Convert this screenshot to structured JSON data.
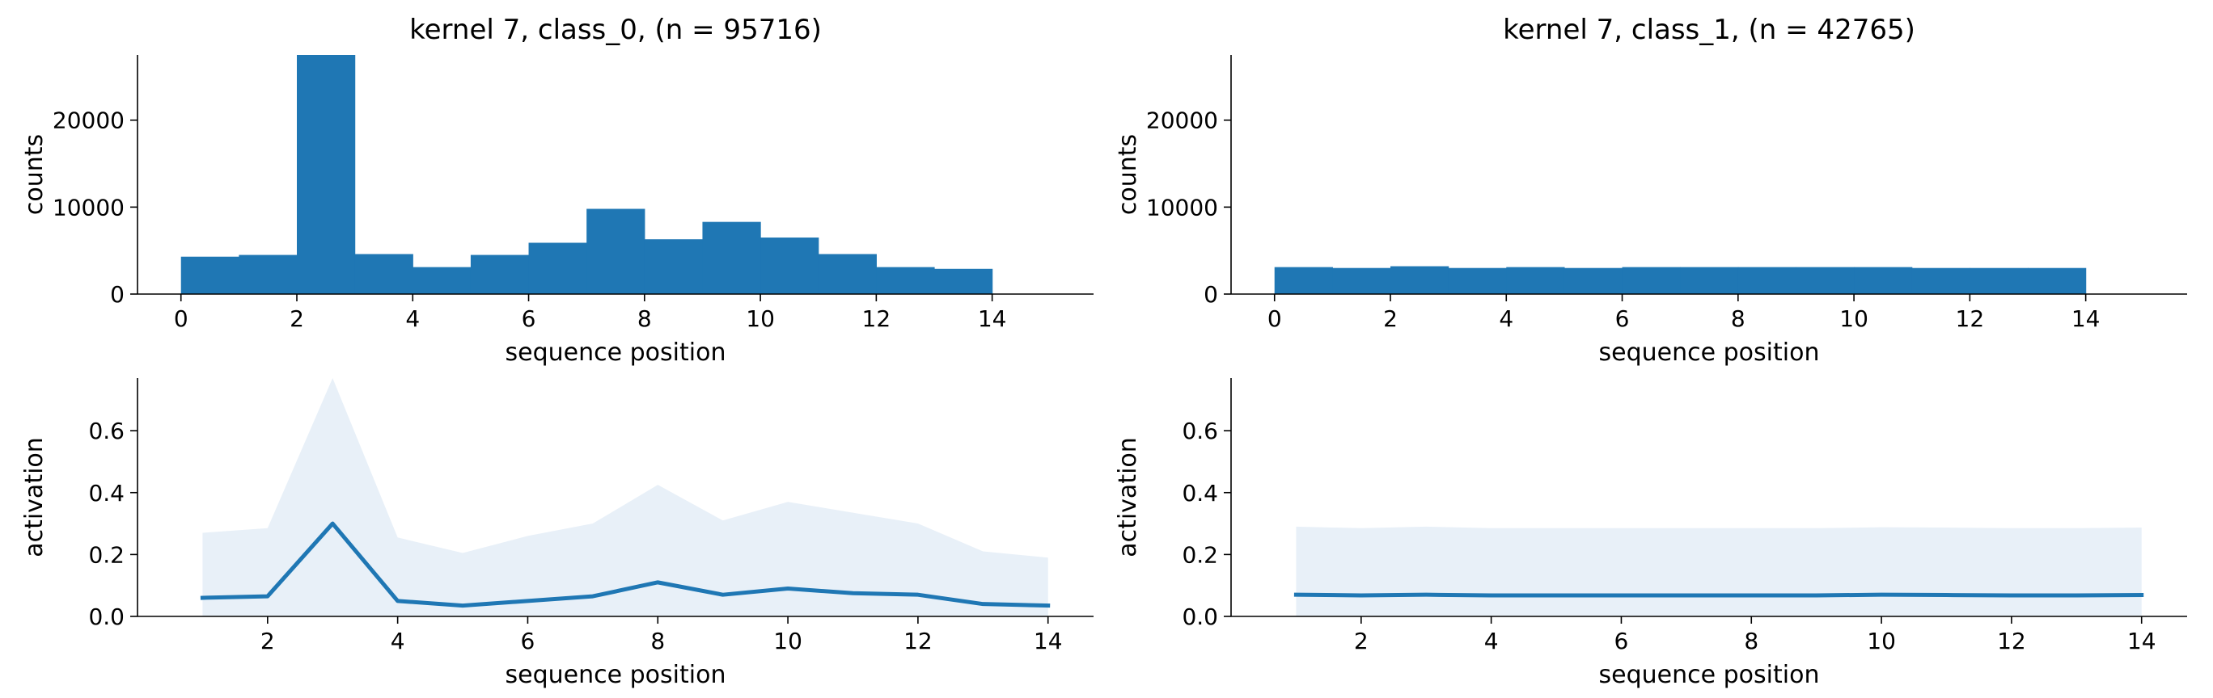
{
  "chart_data": [
    {
      "type": "bar",
      "title": "kernel 7, class_0, (n = 95716)",
      "xlabel": "sequence position",
      "ylabel": "counts",
      "xlim": [
        -0.75,
        15.75
      ],
      "ylim": [
        0,
        27500
      ],
      "xticks": [
        0,
        2,
        4,
        6,
        8,
        10,
        12,
        14
      ],
      "yticks": [
        0,
        10000,
        20000
      ],
      "bin_edges": [
        0,
        1,
        2,
        3,
        4,
        5,
        6,
        7,
        8,
        9,
        10,
        11,
        12,
        13,
        14
      ],
      "values": [
        4300,
        4500,
        28000,
        4600,
        3100,
        4500,
        5900,
        9800,
        6300,
        8300,
        6500,
        4600,
        3100,
        2900
      ],
      "color": "#1f77b4",
      "grid": false
    },
    {
      "type": "bar",
      "title": "kernel 7, class_1, (n = 42765)",
      "xlabel": "sequence position",
      "ylabel": "counts",
      "xlim": [
        -0.75,
        15.75
      ],
      "ylim": [
        0,
        27500
      ],
      "xticks": [
        0,
        2,
        4,
        6,
        8,
        10,
        12,
        14
      ],
      "yticks": [
        0,
        10000,
        20000
      ],
      "bin_edges": [
        0,
        1,
        2,
        3,
        4,
        5,
        6,
        7,
        8,
        9,
        10,
        11,
        12,
        13,
        14
      ],
      "values": [
        3100,
        3000,
        3200,
        3000,
        3100,
        3000,
        3100,
        3100,
        3100,
        3100,
        3100,
        3000,
        3000,
        3000
      ],
      "color": "#1f77b4",
      "grid": false
    },
    {
      "type": "line",
      "title": "",
      "xlabel": "sequence position",
      "ylabel": "activation",
      "xlim": [
        0.0,
        14.7
      ],
      "ylim": [
        0,
        0.77
      ],
      "xticks": [
        2,
        4,
        6,
        8,
        10,
        12,
        14
      ],
      "yticks": [
        0.0,
        0.2,
        0.4,
        0.6
      ],
      "ytick_labels": [
        "0.0",
        "0.2",
        "0.4",
        "0.6"
      ],
      "x": [
        1,
        2,
        3,
        4,
        5,
        6,
        7,
        8,
        9,
        10,
        11,
        12,
        13,
        14
      ],
      "mean": [
        0.06,
        0.065,
        0.3,
        0.05,
        0.035,
        0.05,
        0.065,
        0.11,
        0.07,
        0.09,
        0.075,
        0.07,
        0.04,
        0.035
      ],
      "band_upper": [
        0.27,
        0.285,
        0.77,
        0.255,
        0.205,
        0.26,
        0.3,
        0.425,
        0.31,
        0.37,
        0.335,
        0.3,
        0.21,
        0.19
      ],
      "band_lower": [
        0,
        0,
        0,
        0,
        0,
        0,
        0,
        0,
        0,
        0,
        0,
        0,
        0,
        0
      ],
      "color": "#1f77b4",
      "band_color": "#e8f0f8",
      "grid": false
    },
    {
      "type": "line",
      "title": "",
      "xlabel": "sequence position",
      "ylabel": "activation",
      "xlim": [
        0.0,
        14.7
      ],
      "ylim": [
        0,
        0.77
      ],
      "xticks": [
        2,
        4,
        6,
        8,
        10,
        12,
        14
      ],
      "yticks": [
        0.0,
        0.2,
        0.4,
        0.6
      ],
      "ytick_labels": [
        "0.0",
        "0.2",
        "0.4",
        "0.6"
      ],
      "x": [
        1,
        2,
        3,
        4,
        5,
        6,
        7,
        8,
        9,
        10,
        11,
        12,
        13,
        14
      ],
      "mean": [
        0.07,
        0.068,
        0.07,
        0.068,
        0.068,
        0.068,
        0.068,
        0.068,
        0.068,
        0.07,
        0.069,
        0.068,
        0.068,
        0.069
      ],
      "band_upper": [
        0.29,
        0.285,
        0.29,
        0.285,
        0.285,
        0.285,
        0.285,
        0.285,
        0.285,
        0.288,
        0.287,
        0.285,
        0.285,
        0.287
      ],
      "band_lower": [
        0,
        0,
        0,
        0,
        0,
        0,
        0,
        0,
        0,
        0,
        0,
        0,
        0,
        0
      ],
      "color": "#1f77b4",
      "band_color": "#e8f0f8",
      "grid": false
    }
  ]
}
